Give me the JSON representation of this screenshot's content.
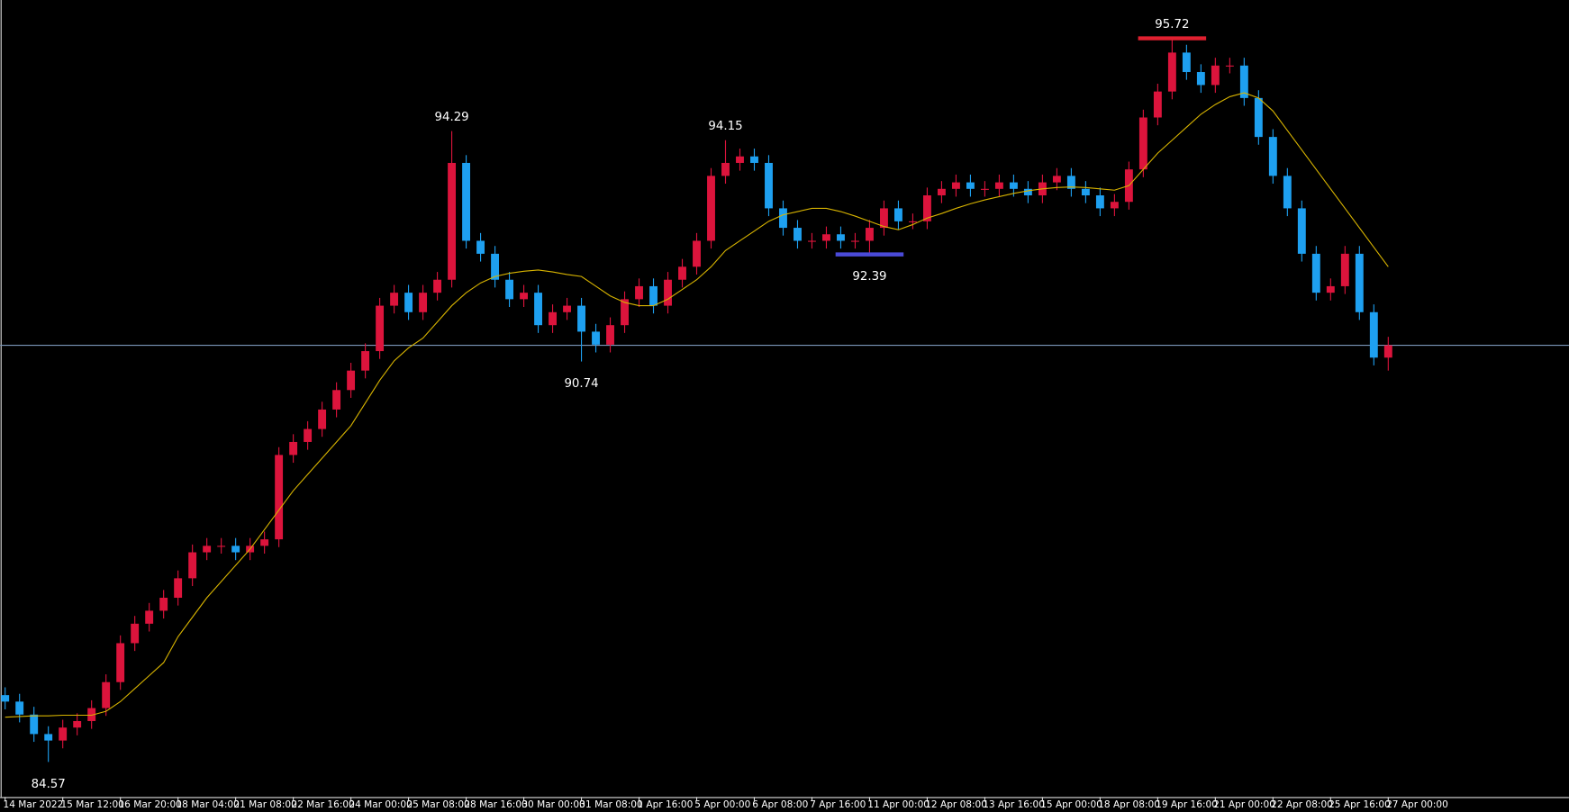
{
  "chart_data": {
    "type": "candlestick",
    "ylim": [
      84.03,
      96.31
    ],
    "xlim": [
      -0.35,
      108.54
    ],
    "bull_color": "#dc143c",
    "bear_color": "#1ea0f0",
    "open": [
      85.6,
      85.5,
      85.3,
      85.0,
      84.9,
      85.1,
      85.2,
      85.4,
      85.8,
      86.4,
      86.7,
      86.9,
      87.1,
      87.4,
      87.8,
      87.9,
      87.9,
      87.8,
      87.9,
      88.0,
      89.3,
      89.5,
      89.7,
      90.0,
      90.3,
      90.6,
      90.9,
      91.6,
      91.8,
      91.5,
      91.8,
      92.0,
      93.8,
      92.6,
      92.4,
      92.0,
      91.7,
      91.8,
      91.3,
      91.5,
      91.6,
      91.2,
      91.0,
      91.3,
      91.7,
      91.9,
      91.6,
      92.0,
      92.2,
      92.6,
      93.6,
      93.8,
      93.9,
      93.8,
      93.1,
      92.8,
      92.6,
      92.6,
      92.7,
      92.6,
      92.6,
      92.8,
      93.1,
      92.9,
      92.9,
      93.3,
      93.4,
      93.5,
      93.4,
      93.4,
      93.5,
      93.4,
      93.3,
      93.5,
      93.6,
      93.4,
      93.3,
      93.1,
      93.2,
      93.7,
      94.5,
      94.9,
      95.5,
      95.2,
      95.0,
      95.3,
      95.3,
      94.8,
      94.2,
      93.6,
      93.1,
      92.4,
      91.8,
      91.9,
      92.4,
      91.5,
      90.8
    ],
    "high": [
      85.72,
      85.62,
      85.42,
      85.12,
      85.22,
      85.32,
      85.52,
      85.92,
      86.52,
      86.82,
      87.02,
      87.22,
      87.52,
      87.92,
      88.02,
      88.02,
      88.02,
      88.02,
      88.12,
      89.42,
      89.62,
      89.82,
      90.12,
      90.42,
      90.72,
      91.02,
      91.72,
      91.92,
      91.92,
      91.92,
      92.12,
      94.29,
      93.92,
      92.72,
      92.52,
      92.12,
      91.92,
      91.92,
      91.62,
      91.72,
      91.72,
      91.32,
      91.42,
      91.82,
      92.02,
      92.02,
      92.12,
      92.32,
      92.72,
      93.72,
      94.15,
      94.02,
      94.02,
      93.92,
      93.22,
      92.92,
      92.72,
      92.82,
      92.82,
      92.72,
      92.92,
      93.22,
      93.22,
      93.02,
      93.42,
      93.52,
      93.62,
      93.62,
      93.52,
      93.62,
      93.62,
      93.52,
      93.62,
      93.72,
      93.72,
      93.52,
      93.42,
      93.32,
      93.82,
      94.62,
      95.02,
      95.72,
      95.62,
      95.32,
      95.42,
      95.42,
      95.42,
      94.92,
      94.32,
      93.72,
      93.22,
      92.52,
      92.02,
      92.52,
      92.52,
      91.62,
      91.12
    ],
    "low": [
      85.38,
      85.18,
      84.88,
      84.57,
      84.78,
      84.98,
      85.08,
      85.28,
      85.68,
      86.28,
      86.58,
      86.78,
      86.98,
      87.28,
      87.68,
      87.78,
      87.68,
      87.68,
      87.78,
      87.88,
      89.18,
      89.38,
      89.58,
      89.88,
      90.18,
      90.48,
      90.78,
      91.48,
      91.38,
      91.38,
      91.68,
      91.88,
      92.48,
      92.28,
      91.88,
      91.58,
      91.58,
      91.18,
      91.18,
      91.38,
      90.74,
      90.88,
      90.88,
      91.18,
      91.58,
      91.48,
      91.48,
      91.88,
      92.08,
      92.48,
      93.48,
      93.68,
      93.68,
      92.98,
      92.68,
      92.48,
      92.48,
      92.48,
      92.48,
      92.48,
      92.39,
      92.68,
      92.78,
      92.78,
      92.78,
      93.18,
      93.28,
      93.28,
      93.28,
      93.28,
      93.28,
      93.18,
      93.18,
      93.38,
      93.28,
      93.18,
      92.98,
      92.98,
      93.08,
      93.58,
      94.38,
      94.78,
      95.08,
      94.88,
      94.88,
      95.18,
      94.68,
      94.08,
      93.48,
      92.98,
      92.28,
      91.68,
      91.68,
      91.78,
      91.38,
      90.68,
      90.6
    ],
    "close": [
      85.5,
      85.3,
      85.0,
      84.9,
      85.1,
      85.2,
      85.4,
      85.8,
      86.4,
      86.7,
      86.9,
      87.1,
      87.4,
      87.8,
      87.9,
      87.9,
      87.8,
      87.9,
      88.0,
      89.3,
      89.5,
      89.7,
      90.0,
      90.3,
      90.6,
      90.9,
      91.6,
      91.8,
      91.5,
      91.8,
      92.0,
      93.8,
      92.6,
      92.4,
      92.0,
      91.7,
      91.8,
      91.3,
      91.5,
      91.6,
      91.2,
      91.0,
      91.3,
      91.7,
      91.9,
      91.6,
      92.0,
      92.2,
      92.6,
      93.6,
      93.8,
      93.9,
      93.8,
      93.1,
      92.8,
      92.6,
      92.6,
      92.7,
      92.6,
      92.6,
      92.8,
      93.1,
      92.9,
      92.9,
      93.3,
      93.4,
      93.5,
      93.4,
      93.4,
      93.5,
      93.4,
      93.3,
      93.5,
      93.6,
      93.4,
      93.3,
      93.1,
      93.2,
      93.7,
      94.5,
      94.9,
      95.5,
      95.2,
      95.0,
      95.3,
      95.3,
      94.8,
      94.2,
      93.6,
      93.1,
      92.4,
      91.8,
      91.9,
      92.4,
      91.5,
      90.8,
      90.99
    ],
    "moving_average": {
      "color": "#d8b400",
      "values": [
        85.26,
        85.27,
        85.28,
        85.28,
        85.29,
        85.29,
        85.29,
        85.35,
        85.5,
        85.7,
        85.9,
        86.1,
        86.5,
        86.8,
        87.1,
        87.35,
        87.6,
        87.85,
        88.15,
        88.45,
        88.75,
        89.0,
        89.25,
        89.5,
        89.75,
        90.1,
        90.45,
        90.75,
        90.95,
        91.1,
        91.35,
        91.6,
        91.8,
        91.95,
        92.05,
        92.1,
        92.13,
        92.15,
        92.12,
        92.08,
        92.05,
        91.9,
        91.75,
        91.65,
        91.6,
        91.6,
        91.7,
        91.85,
        92.0,
        92.2,
        92.45,
        92.6,
        92.75,
        92.9,
        93.0,
        93.05,
        93.1,
        93.1,
        93.05,
        92.98,
        92.9,
        92.82,
        92.77,
        92.85,
        92.95,
        93.02,
        93.1,
        93.17,
        93.23,
        93.28,
        93.33,
        93.37,
        93.4,
        93.42,
        93.43,
        93.42,
        93.4,
        93.38,
        93.45,
        93.7,
        93.95,
        94.15,
        94.35,
        94.55,
        94.7,
        94.82,
        94.88,
        94.8,
        94.6,
        94.3,
        94.0,
        93.7,
        93.4,
        93.1,
        92.8,
        92.5,
        92.2
      ]
    },
    "price_line": {
      "value": 90.99,
      "color": "#7a96b8"
    },
    "annotations": [
      {
        "value": 95.72,
        "index": 81,
        "position": "above",
        "color": "#e02030"
      },
      {
        "value": 94.29,
        "index": 31,
        "position": "above"
      },
      {
        "value": 94.15,
        "index": 50,
        "position": "above"
      },
      {
        "value": 92.39,
        "index": 60,
        "position": "below",
        "color": "#4a4ad8"
      },
      {
        "value": 90.74,
        "index": 40,
        "position": "below"
      },
      {
        "value": 84.57,
        "index": 3,
        "position": "below"
      }
    ],
    "xticks": [
      {
        "value": 0,
        "label": "14 Mar 2022"
      },
      {
        "value": 4,
        "label": "15 Mar 12:00"
      },
      {
        "value": 8,
        "label": "16 Mar 20:00"
      },
      {
        "value": 12,
        "label": "18 Mar 04:00"
      },
      {
        "value": 16,
        "label": "21 Mar 08:00"
      },
      {
        "value": 20,
        "label": "22 Mar 16:00"
      },
      {
        "value": 24,
        "label": "24 Mar 00:00"
      },
      {
        "value": 28,
        "label": "25 Mar 08:00"
      },
      {
        "value": 32,
        "label": "28 Mar 16:00"
      },
      {
        "value": 36,
        "label": "30 Mar 00:00"
      },
      {
        "value": 40,
        "label": "31 Mar 08:00"
      },
      {
        "value": 44,
        "label": "1 Apr 16:00"
      },
      {
        "value": 48,
        "label": "5 Apr 00:00"
      },
      {
        "value": 52,
        "label": "6 Apr 08:00"
      },
      {
        "value": 56,
        "label": "7 Apr 16:00"
      },
      {
        "value": 60,
        "label": "11 Apr 00:00"
      },
      {
        "value": 64,
        "label": "12 Apr 08:00"
      },
      {
        "value": 68,
        "label": "13 Apr 16:00"
      },
      {
        "value": 72,
        "label": "15 Apr 00:00"
      },
      {
        "value": 76,
        "label": "18 Apr 08:00"
      },
      {
        "value": 80,
        "label": "19 Apr 16:00"
      },
      {
        "value": 84,
        "label": "21 Apr 00:00"
      },
      {
        "value": 88,
        "label": "22 Apr 08:00"
      },
      {
        "value": 92,
        "label": "25 Apr 16:00"
      },
      {
        "value": 96,
        "label": "27 Apr 00:00"
      }
    ]
  }
}
